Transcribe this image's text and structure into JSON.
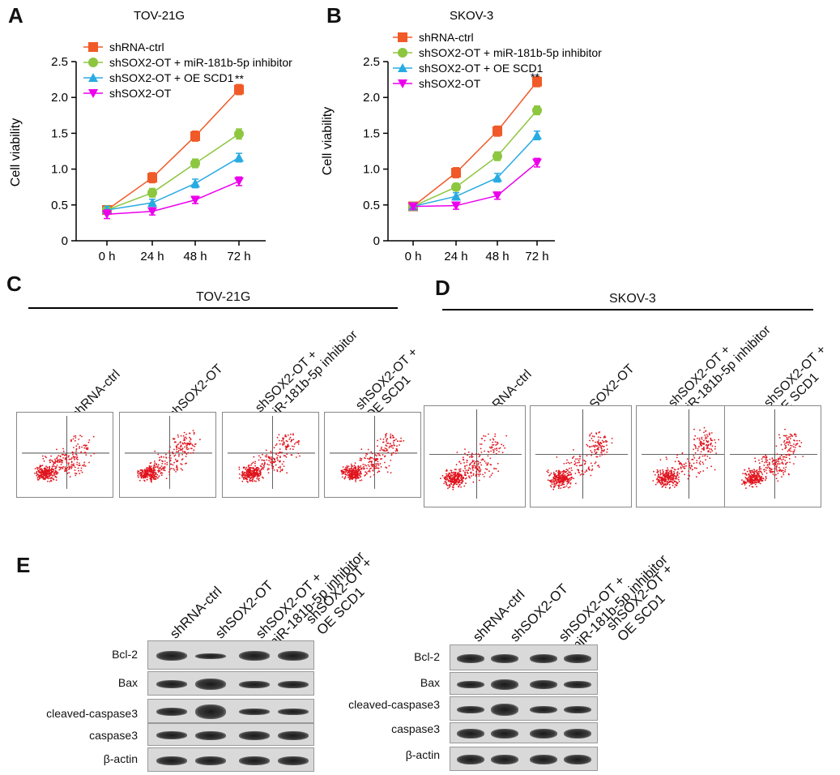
{
  "panels": {
    "A": "A",
    "B": "B",
    "C": "C",
    "D": "D",
    "E": "E"
  },
  "chart_data": [
    {
      "type": "line",
      "title": "TOV-21G",
      "ylabel": "Cell viability",
      "categories": [
        "0 h",
        "24 h",
        "48 h",
        "72 h"
      ],
      "yticks": [
        "0",
        "0.5",
        "1.0",
        "1.5",
        "2.0",
        "2.5"
      ],
      "ylim": [
        0,
        2.5
      ],
      "significance": "**",
      "series": [
        {
          "name": "shRNA-ctrl",
          "color": "#f05a28",
          "marker": "square",
          "values": [
            0.43,
            0.88,
            1.46,
            2.11
          ],
          "errors": [
            0.06,
            0.07,
            0.07,
            0.07
          ]
        },
        {
          "name": "shSOX2-OT + miR-181b-5p inhibitor",
          "color": "#8dc63f",
          "marker": "circle",
          "values": [
            0.43,
            0.67,
            1.08,
            1.49
          ],
          "errors": [
            0.05,
            0.06,
            0.06,
            0.07
          ]
        },
        {
          "name": "shSOX2-OT + OE SCD1",
          "color": "#29abe2",
          "marker": "triangle-up",
          "values": [
            0.43,
            0.53,
            0.8,
            1.16
          ],
          "errors": [
            0.05,
            0.05,
            0.06,
            0.06
          ]
        },
        {
          "name": "shSOX2-OT",
          "color": "#ec00ec",
          "marker": "triangle-down",
          "values": [
            0.37,
            0.41,
            0.57,
            0.83
          ],
          "errors": [
            0.06,
            0.05,
            0.05,
            0.06
          ]
        }
      ]
    },
    {
      "type": "line",
      "title": "SKOV-3",
      "ylabel": "Cell viability",
      "categories": [
        "0 h",
        "24 h",
        "48 h",
        "72 h"
      ],
      "yticks": [
        "0",
        "0.5",
        "1.0",
        "1.5",
        "2.0",
        "2.5"
      ],
      "ylim": [
        0,
        2.5
      ],
      "significance": "**",
      "series": [
        {
          "name": "shRNA-ctrl",
          "color": "#f05a28",
          "marker": "square",
          "values": [
            0.48,
            0.95,
            1.53,
            2.22
          ],
          "errors": [
            0.04,
            0.07,
            0.07,
            0.07
          ]
        },
        {
          "name": "shSOX2-OT + miR-181b-5p inhibitor",
          "color": "#8dc63f",
          "marker": "circle",
          "values": [
            0.48,
            0.75,
            1.18,
            1.82
          ],
          "errors": [
            0.04,
            0.05,
            0.06,
            0.06
          ]
        },
        {
          "name": "shSOX2-OT + OE SCD1",
          "color": "#29abe2",
          "marker": "triangle-up",
          "values": [
            0.48,
            0.62,
            0.88,
            1.47
          ],
          "errors": [
            0.04,
            0.05,
            0.06,
            0.06
          ]
        },
        {
          "name": "shSOX2-OT",
          "color": "#ec00ec",
          "marker": "triangle-down",
          "values": [
            0.48,
            0.49,
            0.63,
            1.09
          ],
          "errors": [
            0.04,
            0.05,
            0.05,
            0.06
          ]
        }
      ]
    }
  ],
  "panelC": {
    "title": "TOV-21G",
    "groups": [
      "shRNA-ctrl",
      "shSOX2-OT",
      "shSOX2-OT +\nmiR-181b-5p inhibitor",
      "shSOX2-OT +\nOE SCD1"
    ]
  },
  "panelD": {
    "title": "SKOV-3",
    "groups": [
      "shRNA-ctrl",
      "shSOX2-OT",
      "shSOX2-OT +\nmiR-181b-5p inhibitor",
      "shSOX2-OT +\nOE SCD1"
    ]
  },
  "panelE": {
    "groups": [
      "shRNA-ctrl",
      "shSOX2-OT",
      "shSOX2-OT +\nmiR-181b-5p inhibitor",
      "shSOX2-OT +\nOE SCD1"
    ],
    "proteins": [
      "Bcl-2",
      "Bax",
      "cleaved-caspase3",
      "caspase3",
      "β-actin"
    ]
  }
}
